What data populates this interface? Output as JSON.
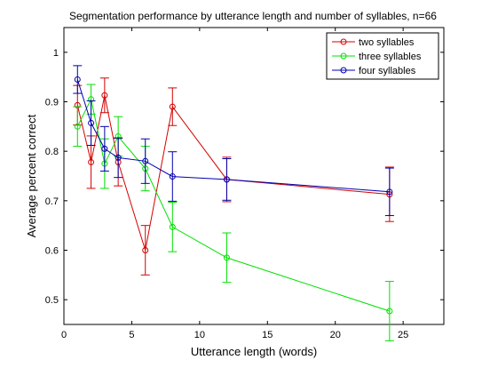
{
  "chart_data": {
    "type": "line",
    "title": "Segmentation performance by utterance length and number of syllables, n=66",
    "xlabel": "Utterance length (words)",
    "ylabel": "Average percent correct",
    "xlim": [
      0,
      28
    ],
    "ylim": [
      0.45,
      1.05
    ],
    "xticks": [
      0,
      5,
      10,
      15,
      20,
      25
    ],
    "yticks": [
      0.5,
      0.6,
      0.7,
      0.8,
      0.9,
      1.0
    ],
    "xtick_labels": [
      "0",
      "5",
      "10",
      "15",
      "20",
      "25"
    ],
    "ytick_labels": [
      "0.5",
      "0.6",
      "0.7",
      "0.8",
      "0.9",
      "1"
    ],
    "grid": false,
    "legend_position": "top-right",
    "series": [
      {
        "name": "two syllables",
        "color": "#d40000",
        "x": [
          1,
          2,
          3,
          4,
          6,
          8,
          12,
          24
        ],
        "y": [
          0.893,
          0.778,
          0.913,
          0.778,
          0.6,
          0.89,
          0.743,
          0.713
        ],
        "err": [
          0.04,
          0.053,
          0.035,
          0.048,
          0.05,
          0.038,
          0.045,
          0.055
        ]
      },
      {
        "name": "three syllables",
        "color": "#00e000",
        "x": [
          1,
          2,
          3,
          4,
          6,
          8,
          12,
          24
        ],
        "y": [
          0.85,
          0.905,
          0.775,
          0.83,
          0.765,
          0.647,
          0.585,
          0.477
        ],
        "err": [
          0.04,
          0.03,
          0.05,
          0.04,
          0.045,
          0.05,
          0.05,
          0.06
        ]
      },
      {
        "name": "four syllables",
        "color": "#0000b0",
        "x": [
          1,
          2,
          3,
          4,
          6,
          8,
          12,
          24
        ],
        "y": [
          0.945,
          0.857,
          0.805,
          0.787,
          0.78,
          0.749,
          0.743,
          0.718
        ],
        "err": [
          0.028,
          0.045,
          0.045,
          0.04,
          0.045,
          0.05,
          0.042,
          0.048
        ]
      }
    ]
  }
}
